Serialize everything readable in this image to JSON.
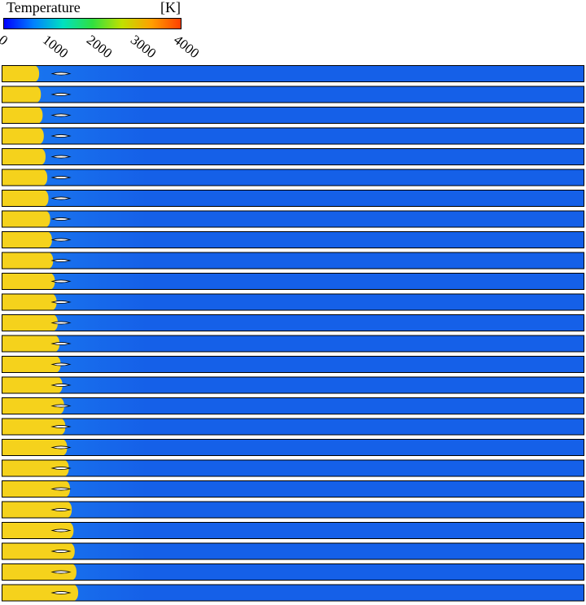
{
  "legend": {
    "title": "Temperature",
    "unit": "[K]",
    "min": 0,
    "max": 4000,
    "ticks": [
      "0",
      "1000",
      "2000",
      "3000",
      "4000"
    ],
    "colors": [
      "#0000ff",
      "#0080ff",
      "#00e0c0",
      "#30e040",
      "#c0e000",
      "#ffa000",
      "#ff4000"
    ]
  },
  "field": {
    "frame_count": 26,
    "hot_color": "#f5d21c",
    "cold_color": "#1560e8",
    "cold_edge_color": "#1a7af0",
    "hot_temperature_K": 3100,
    "ambient_temperature_K": 600,
    "hot_front_depth": [
      0.063,
      0.066,
      0.069,
      0.071,
      0.074,
      0.077,
      0.079,
      0.082,
      0.085,
      0.087,
      0.09,
      0.093,
      0.095,
      0.098,
      0.1,
      0.103,
      0.106,
      0.108,
      0.111,
      0.114,
      0.116,
      0.119,
      0.122,
      0.124,
      0.127,
      0.13
    ]
  }
}
